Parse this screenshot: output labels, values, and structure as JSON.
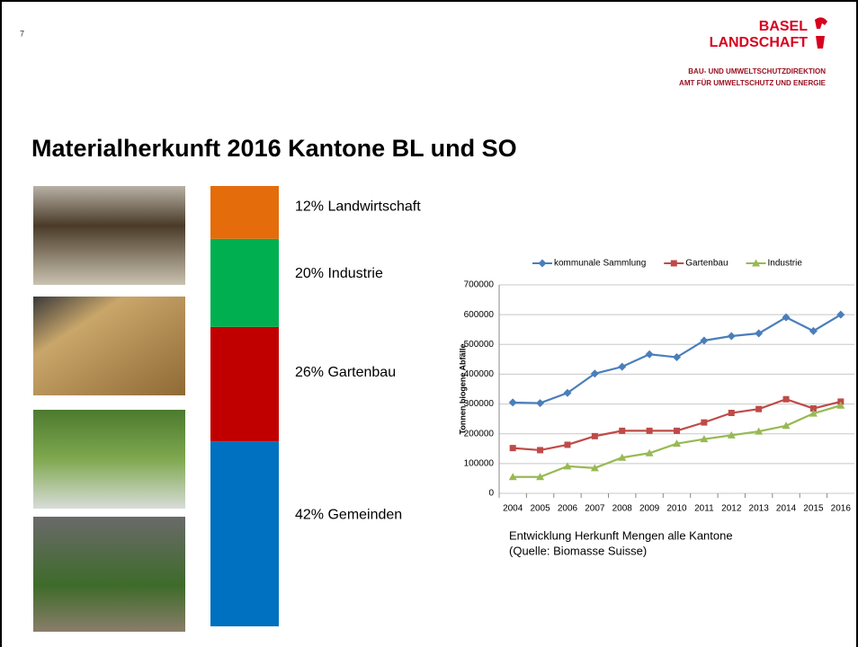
{
  "slide_number": "7",
  "logo": {
    "line1": "BASEL",
    "line2": "LANDSCHAFT"
  },
  "department": [
    "BAU- UND UMWELTSCHUTZDIREKTION",
    "AMT FÜR UMWELTSCHUTZ UND ENERGIE"
  ],
  "title": "Materialherkunft  2016 Kantone BL und SO",
  "caption": [
    "Entwicklung Herkunft Mengen alle Kantone",
    "(Quelle: Biomasse Suisse)"
  ],
  "chart_data": [
    {
      "type": "bar",
      "stacked": true,
      "categories": [
        null
      ],
      "ylim": [
        0,
        100
      ],
      "series": [
        {
          "name": "Gemeinden",
          "color": "#0070c0",
          "values": [
            42
          ],
          "value_labels": [
            "42%"
          ]
        },
        {
          "name": "Gartenbau",
          "color": "#c00000",
          "values": [
            26
          ],
          "value_labels": [
            "26%"
          ]
        },
        {
          "name": "Industrie",
          "color": "#00b050",
          "values": [
            20
          ],
          "value_labels": [
            "20%"
          ]
        },
        {
          "name": "Landwirtschaft",
          "color": "#e46c0a",
          "values": [
            12
          ],
          "value_labels": [
            "12%"
          ]
        }
      ]
    },
    {
      "type": "line",
      "ylabel": "Tonnen biogene Abfälle",
      "grid": true,
      "legend": "top",
      "categories": [
        "2004",
        "2005",
        "2006",
        "2007",
        "2008",
        "2009",
        "2010",
        "2011",
        "2012",
        "2013",
        "2014",
        "2015",
        "2016"
      ],
      "ylim": [
        0,
        700000
      ],
      "yticks": [
        0,
        100000,
        200000,
        300000,
        400000,
        500000,
        600000,
        700000
      ],
      "series": [
        {
          "name": "kommunale Sammlung",
          "color": "#4a7ebb",
          "marker": "diamond",
          "values": [
            305000,
            303000,
            337000,
            402000,
            425000,
            467000,
            457000,
            513000,
            528000,
            537000,
            591000,
            545000,
            600000
          ]
        },
        {
          "name": "Gartenbau",
          "color": "#be4b48",
          "marker": "square",
          "values": [
            152000,
            145000,
            163000,
            192000,
            210000,
            210000,
            210000,
            238000,
            270000,
            283000,
            316000,
            285000,
            308000
          ]
        },
        {
          "name": "Industrie",
          "color": "#98b954",
          "marker": "triangle",
          "values": [
            55000,
            55000,
            91000,
            85000,
            120000,
            135000,
            167000,
            182000,
            195000,
            208000,
            227000,
            268000,
            295000
          ]
        }
      ]
    }
  ]
}
